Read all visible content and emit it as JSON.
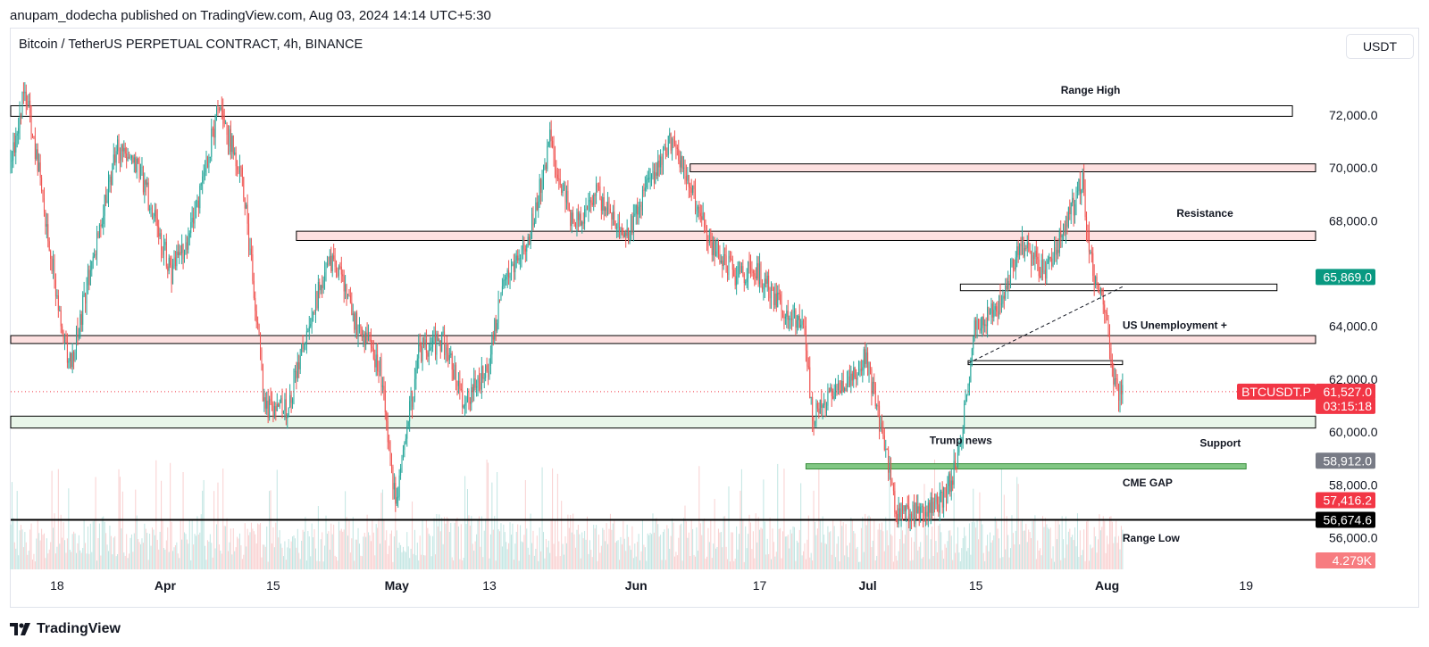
{
  "header": {
    "published_line": "anupam_dodecha published on TradingView.com, Aug 03, 2024 14:14 UTC+5:30"
  },
  "chart_header": {
    "symbol_title": "Bitcoin / TetherUS PERPETUAL CONTRACT, 4h, BINANCE",
    "currency_button": "USDT"
  },
  "footer": {
    "brand": "TradingView",
    "logo_icon": "tradingview-logo-icon"
  },
  "colors": {
    "up": "#26a69a",
    "down": "#ef5350",
    "zone_red_fill": "#fde0e0",
    "zone_green_fill": "#e8f5e9",
    "cme_fill": "#81c784",
    "price_tag": "#f23645",
    "green_tag": "#089981",
    "gray_tag": "#787b86",
    "black_tag": "#000000",
    "volume_tag": "#f77c80"
  },
  "chart_data": {
    "type": "candlestick",
    "title": "Bitcoin / TetherUS PERPETUAL CONTRACT, 4h, BINANCE",
    "timeframe": "4h",
    "y_range": [
      54800,
      74800
    ],
    "x_range": [
      "2024-03-12",
      "2024-08-28"
    ],
    "x_ticks": [
      {
        "label": "18",
        "date": "2024-03-18"
      },
      {
        "label": "Apr",
        "date": "2024-04-01"
      },
      {
        "label": "15",
        "date": "2024-04-15"
      },
      {
        "label": "May",
        "date": "2024-05-01"
      },
      {
        "label": "13",
        "date": "2024-05-13"
      },
      {
        "label": "Jun",
        "date": "2024-06-01"
      },
      {
        "label": "17",
        "date": "2024-06-17"
      },
      {
        "label": "Jul",
        "date": "2024-07-01"
      },
      {
        "label": "15",
        "date": "2024-07-15"
      },
      {
        "label": "Aug",
        "date": "2024-08-01"
      },
      {
        "label": "19",
        "date": "2024-08-19"
      }
    ],
    "y_ticks": [
      {
        "label": "72,000.0",
        "value": 72000
      },
      {
        "label": "70,000.0",
        "value": 70000
      },
      {
        "label": "68,000.0",
        "value": 68000
      },
      {
        "label": "64,000.0",
        "value": 64000
      },
      {
        "label": "62,000.0",
        "value": 62000
      },
      {
        "label": "60,000.0",
        "value": 60000
      },
      {
        "label": "58,000.0",
        "value": 58000
      },
      {
        "label": "56,000.0",
        "value": 56000
      }
    ],
    "price_path": [
      {
        "date": "2024-03-12",
        "value": 70000
      },
      {
        "date": "2024-03-14",
        "value": 73000
      },
      {
        "date": "2024-03-16",
        "value": 69500
      },
      {
        "date": "2024-03-19",
        "value": 63500
      },
      {
        "date": "2024-03-20",
        "value": 62500
      },
      {
        "date": "2024-03-22",
        "value": 65500
      },
      {
        "date": "2024-03-26",
        "value": 70800
      },
      {
        "date": "2024-03-29",
        "value": 69800
      },
      {
        "date": "2024-04-02",
        "value": 66000
      },
      {
        "date": "2024-04-05",
        "value": 68000
      },
      {
        "date": "2024-04-08",
        "value": 72200
      },
      {
        "date": "2024-04-11",
        "value": 70000
      },
      {
        "date": "2024-04-13",
        "value": 64500
      },
      {
        "date": "2024-04-14",
        "value": 61000
      },
      {
        "date": "2024-04-17",
        "value": 60800
      },
      {
        "date": "2024-04-20",
        "value": 64500
      },
      {
        "date": "2024-04-23",
        "value": 66700
      },
      {
        "date": "2024-04-26",
        "value": 64000
      },
      {
        "date": "2024-04-29",
        "value": 62500
      },
      {
        "date": "2024-05-01",
        "value": 57200
      },
      {
        "date": "2024-05-04",
        "value": 63000
      },
      {
        "date": "2024-05-07",
        "value": 63500
      },
      {
        "date": "2024-05-10",
        "value": 61000
      },
      {
        "date": "2024-05-13",
        "value": 62500
      },
      {
        "date": "2024-05-15",
        "value": 66000
      },
      {
        "date": "2024-05-18",
        "value": 67000
      },
      {
        "date": "2024-05-21",
        "value": 71000
      },
      {
        "date": "2024-05-24",
        "value": 67800
      },
      {
        "date": "2024-05-27",
        "value": 69000
      },
      {
        "date": "2024-05-31",
        "value": 67500
      },
      {
        "date": "2024-06-03",
        "value": 69500
      },
      {
        "date": "2024-06-06",
        "value": 71200
      },
      {
        "date": "2024-06-08",
        "value": 69300
      },
      {
        "date": "2024-06-11",
        "value": 67000
      },
      {
        "date": "2024-06-14",
        "value": 66000
      },
      {
        "date": "2024-06-17",
        "value": 66000
      },
      {
        "date": "2024-06-20",
        "value": 64800
      },
      {
        "date": "2024-06-23",
        "value": 63800
      },
      {
        "date": "2024-06-24",
        "value": 60500
      },
      {
        "date": "2024-06-27",
        "value": 61500
      },
      {
        "date": "2024-07-01",
        "value": 62800
      },
      {
        "date": "2024-07-03",
        "value": 60000
      },
      {
        "date": "2024-07-05",
        "value": 56800
      },
      {
        "date": "2024-07-08",
        "value": 57000
      },
      {
        "date": "2024-07-11",
        "value": 57500
      },
      {
        "date": "2024-07-13",
        "value": 59000
      },
      {
        "date": "2024-07-15",
        "value": 64000
      },
      {
        "date": "2024-07-18",
        "value": 64800
      },
      {
        "date": "2024-07-21",
        "value": 67200
      },
      {
        "date": "2024-07-24",
        "value": 66000
      },
      {
        "date": "2024-07-27",
        "value": 68000
      },
      {
        "date": "2024-07-29",
        "value": 69500
      },
      {
        "date": "2024-07-30",
        "value": 66500
      },
      {
        "date": "2024-08-01",
        "value": 64600
      },
      {
        "date": "2024-08-02",
        "value": 61700
      },
      {
        "date": "2024-08-03",
        "value": 61527
      }
    ],
    "zones": [
      {
        "label": "Range High",
        "label_date": "2024-07-26",
        "label_value": 72800,
        "top": 72350,
        "bottom": 71950,
        "start": "2024-03-12",
        "end": "2024-08-25",
        "fill": "#ffffff",
        "stroke": "#000000"
      },
      {
        "label": "",
        "top": 70150,
        "bottom": 69850,
        "start": "2024-06-08",
        "end": "2024-08-28",
        "fill": "#fde0e0",
        "stroke": "#000000"
      },
      {
        "label": "Resistance",
        "label_date": "2024-08-10",
        "label_value": 68150,
        "top": 67600,
        "bottom": 67250,
        "start": "2024-04-18",
        "end": "2024-08-28",
        "fill": "#fde0e0",
        "stroke": "#000000"
      },
      {
        "label": "",
        "top": 65600,
        "bottom": 65350,
        "start": "2024-07-13",
        "end": "2024-08-23",
        "fill": "#ffffff",
        "stroke": "#000000"
      },
      {
        "label": "US Unemployment +",
        "label_date": "2024-08-03",
        "label_value": 63900,
        "top": 63650,
        "bottom": 63350,
        "start": "2024-03-12",
        "end": "2024-08-28",
        "fill": "#fde0e0",
        "stroke": "#000000"
      },
      {
        "label": "",
        "top": 62700,
        "bottom": 62550,
        "start": "2024-07-14",
        "end": "2024-08-03",
        "fill": "#ffffff",
        "stroke": "#000000"
      },
      {
        "label": "Support",
        "label_date": "2024-08-13",
        "label_value": 59450,
        "top": 60600,
        "bottom": 60150,
        "start": "2024-03-12",
        "end": "2024-08-28",
        "fill": "#e8f5e9",
        "stroke": "#000000"
      },
      {
        "label": "CME GAP",
        "label_date": "2024-08-03",
        "label_value": 57950,
        "top": 58800,
        "bottom": 58600,
        "start": "2024-06-23",
        "end": "2024-08-19",
        "fill": "#81c784",
        "stroke": "#388e3c"
      },
      {
        "label": "Range Low",
        "label_date": "2024-08-03",
        "label_value": 55850,
        "top": 56674.6,
        "bottom": 56674.6,
        "start": "2024-03-12",
        "end": "2024-08-28",
        "fill": "none",
        "stroke": "#000000"
      }
    ],
    "annotations": [
      {
        "text": "Trump news",
        "date": "2024-07-09",
        "value": 59550
      }
    ],
    "trend_line": {
      "start_date": "2024-07-14",
      "start_value": 62600,
      "end_date": "2024-08-03",
      "end_value": 65500
    },
    "price_tags": [
      {
        "text": "65,869.0",
        "value": 65869.0,
        "color": "#089981"
      },
      {
        "text": "BTCUSDT.P",
        "value": 61527.0,
        "color": "#f23645",
        "side": "left"
      },
      {
        "text": "61,527.0",
        "value": 61527.0,
        "color": "#f23645"
      },
      {
        "text": "03:15:18",
        "value": 61527.0,
        "color": "#f23645",
        "sub": true
      },
      {
        "text": "58,912.0",
        "value": 58912.0,
        "color": "#787b86"
      },
      {
        "text": "57,416.2",
        "value": 57416.2,
        "color": "#f23645"
      },
      {
        "text": "56,674.6",
        "value": 56674.6,
        "color": "#000000"
      }
    ],
    "volume_tag": {
      "text": "4.279K",
      "color": "#f77c80"
    },
    "last_price": 61527.0,
    "countdown": "03:15:18",
    "legend": "none",
    "grid": false
  }
}
